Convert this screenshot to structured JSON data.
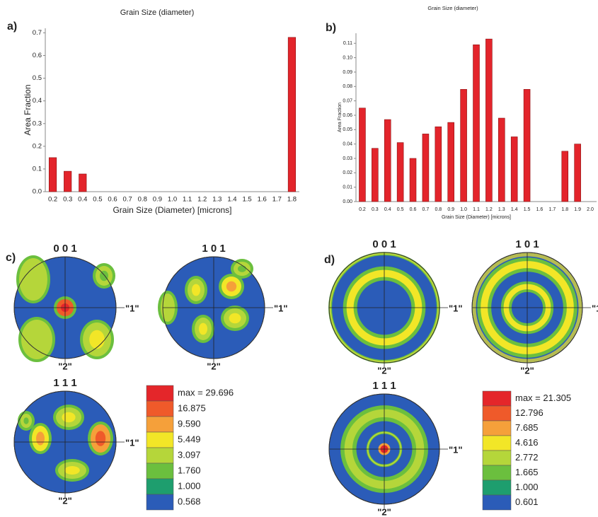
{
  "chart_data": [
    {
      "type": "bar",
      "panel_label": "a)",
      "title": "Grain Size (diameter)",
      "x_label": "Grain Size (Diameter) [microns]",
      "y_label": "Area Fraction",
      "categories": [
        "0.2",
        "0.3",
        "0.4",
        "0.5",
        "0.6",
        "0.7",
        "0.8",
        "0.9",
        "1.0",
        "1.1",
        "1.2",
        "1.3",
        "1.4",
        "1.5",
        "1.6",
        "1.7",
        "1.8"
      ],
      "values": [
        0.15,
        0.09,
        0.078,
        0,
        0,
        0,
        0,
        0,
        0,
        0,
        0,
        0,
        0,
        0,
        0,
        0,
        0.68
      ],
      "color": "#e3242b",
      "ylim": [
        0,
        0.72
      ],
      "yticks": [
        {
          "value": 0,
          "label": "0.0"
        },
        0.1,
        0.2,
        0.3,
        0.4,
        0.5,
        0.6,
        0.7
      ]
    },
    {
      "type": "bar",
      "panel_label": "b)",
      "title": "Grain Size (diameter)",
      "x_label": "Grain Size (Diameter) [microns]",
      "y_label": "Area Fraction",
      "categories": [
        "0.2",
        "0.3",
        "0.4",
        "0.5",
        "0.6",
        "0.7",
        "0.8",
        "0.9",
        "1.0",
        "1.1",
        "1.2",
        "1.3",
        "1.4",
        "1.5",
        "1.6",
        "1.7",
        "1.8",
        "1.9",
        "2.0"
      ],
      "values": [
        0.065,
        0.037,
        0.057,
        0.041,
        0.03,
        0.047,
        0.052,
        0.055,
        0.078,
        0.109,
        0.113,
        0.058,
        0.045,
        0.078,
        0,
        0,
        0.035,
        0.04,
        0
      ],
      "color": "#e3242b",
      "ylim": [
        0,
        0.117
      ],
      "yticks": [
        {
          "value": 0,
          "label": "0.00"
        },
        0.01,
        0.02,
        0.03,
        0.04,
        0.05,
        0.06,
        0.07,
        0.08,
        0.09,
        {
          "value": 0.1,
          "label": "0.10"
        },
        0.11
      ]
    }
  ],
  "pole_figures": [
    {
      "panel_label": "c)",
      "figures": [
        {
          "title": "0 0 1",
          "x_label": "\"1\"",
          "y_label": "\"2\""
        },
        {
          "title": "1 0 1",
          "x_label": "\"1\"",
          "y_label": "\"2\""
        },
        {
          "title": "1 1 1",
          "x_label": "\"1\"",
          "y_label": "\"2\""
        }
      ],
      "legend": [
        "max = 29.696",
        "16.875",
        "9.590",
        "5.449",
        "3.097",
        "1.760",
        "1.000",
        "0.568"
      ]
    },
    {
      "panel_label": "d)",
      "figures": [
        {
          "title": "0 0 1",
          "x_label": "\"1\"",
          "y_label": "\"2\""
        },
        {
          "title": "1 0 1",
          "x_label": "\"1\"",
          "y_label": "\"2\""
        },
        {
          "title": "1 1 1",
          "x_label": "\"1\"",
          "y_label": "\"2\""
        }
      ],
      "legend": [
        "max = 21.305",
        "12.796",
        "7.685",
        "4.616",
        "2.772",
        "1.665",
        "1.000",
        "0.601"
      ]
    }
  ],
  "legend_colors": [
    "#e4262a",
    "#ef5a2a",
    "#f5a03a",
    "#f2e627",
    "#b5d63a",
    "#6bbf3e",
    "#1e9e6e",
    "#2b5cb8"
  ]
}
